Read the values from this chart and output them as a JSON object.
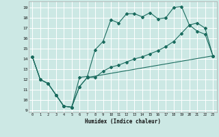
{
  "xlabel": "Humidex (Indice chaleur)",
  "bg_color": "#cce8e4",
  "grid_color": "#ffffff",
  "line_color": "#1a6b5e",
  "xlim": [
    -0.5,
    23.5
  ],
  "ylim": [
    8.8,
    19.6
  ],
  "xticks": [
    0,
    1,
    2,
    3,
    4,
    5,
    6,
    7,
    8,
    9,
    10,
    11,
    12,
    13,
    14,
    15,
    16,
    17,
    18,
    19,
    20,
    21,
    22,
    23
  ],
  "yticks": [
    9,
    10,
    11,
    12,
    13,
    14,
    15,
    16,
    17,
    18,
    19
  ],
  "line1_x": [
    0,
    1,
    2,
    3,
    4,
    5,
    6,
    7,
    8,
    9,
    10,
    11,
    12,
    13,
    14,
    15,
    16,
    17,
    18,
    19,
    20,
    21,
    22,
    23
  ],
  "line1_y": [
    14.2,
    12.0,
    11.6,
    10.5,
    9.4,
    9.3,
    12.2,
    12.3,
    14.9,
    15.7,
    17.8,
    17.5,
    18.4,
    18.4,
    18.1,
    18.5,
    17.9,
    18.0,
    19.0,
    19.1,
    17.3,
    16.7,
    16.4,
    14.3
  ],
  "line2_x": [
    0,
    1,
    2,
    3,
    4,
    5,
    6,
    7,
    23
  ],
  "line2_y": [
    14.2,
    12.0,
    11.6,
    10.5,
    9.4,
    9.3,
    11.3,
    12.2,
    14.3
  ],
  "line3_x": [
    0,
    1,
    2,
    3,
    4,
    5,
    6,
    7,
    8,
    9,
    10,
    11,
    12,
    13,
    14,
    15,
    16,
    17,
    18,
    19,
    20,
    21,
    22,
    23
  ],
  "line3_y": [
    14.2,
    12.0,
    11.6,
    10.5,
    9.4,
    9.3,
    11.3,
    12.2,
    12.2,
    12.8,
    13.2,
    13.4,
    13.7,
    14.0,
    14.2,
    14.5,
    14.8,
    15.2,
    15.7,
    16.5,
    17.3,
    17.5,
    17.0,
    14.3
  ]
}
